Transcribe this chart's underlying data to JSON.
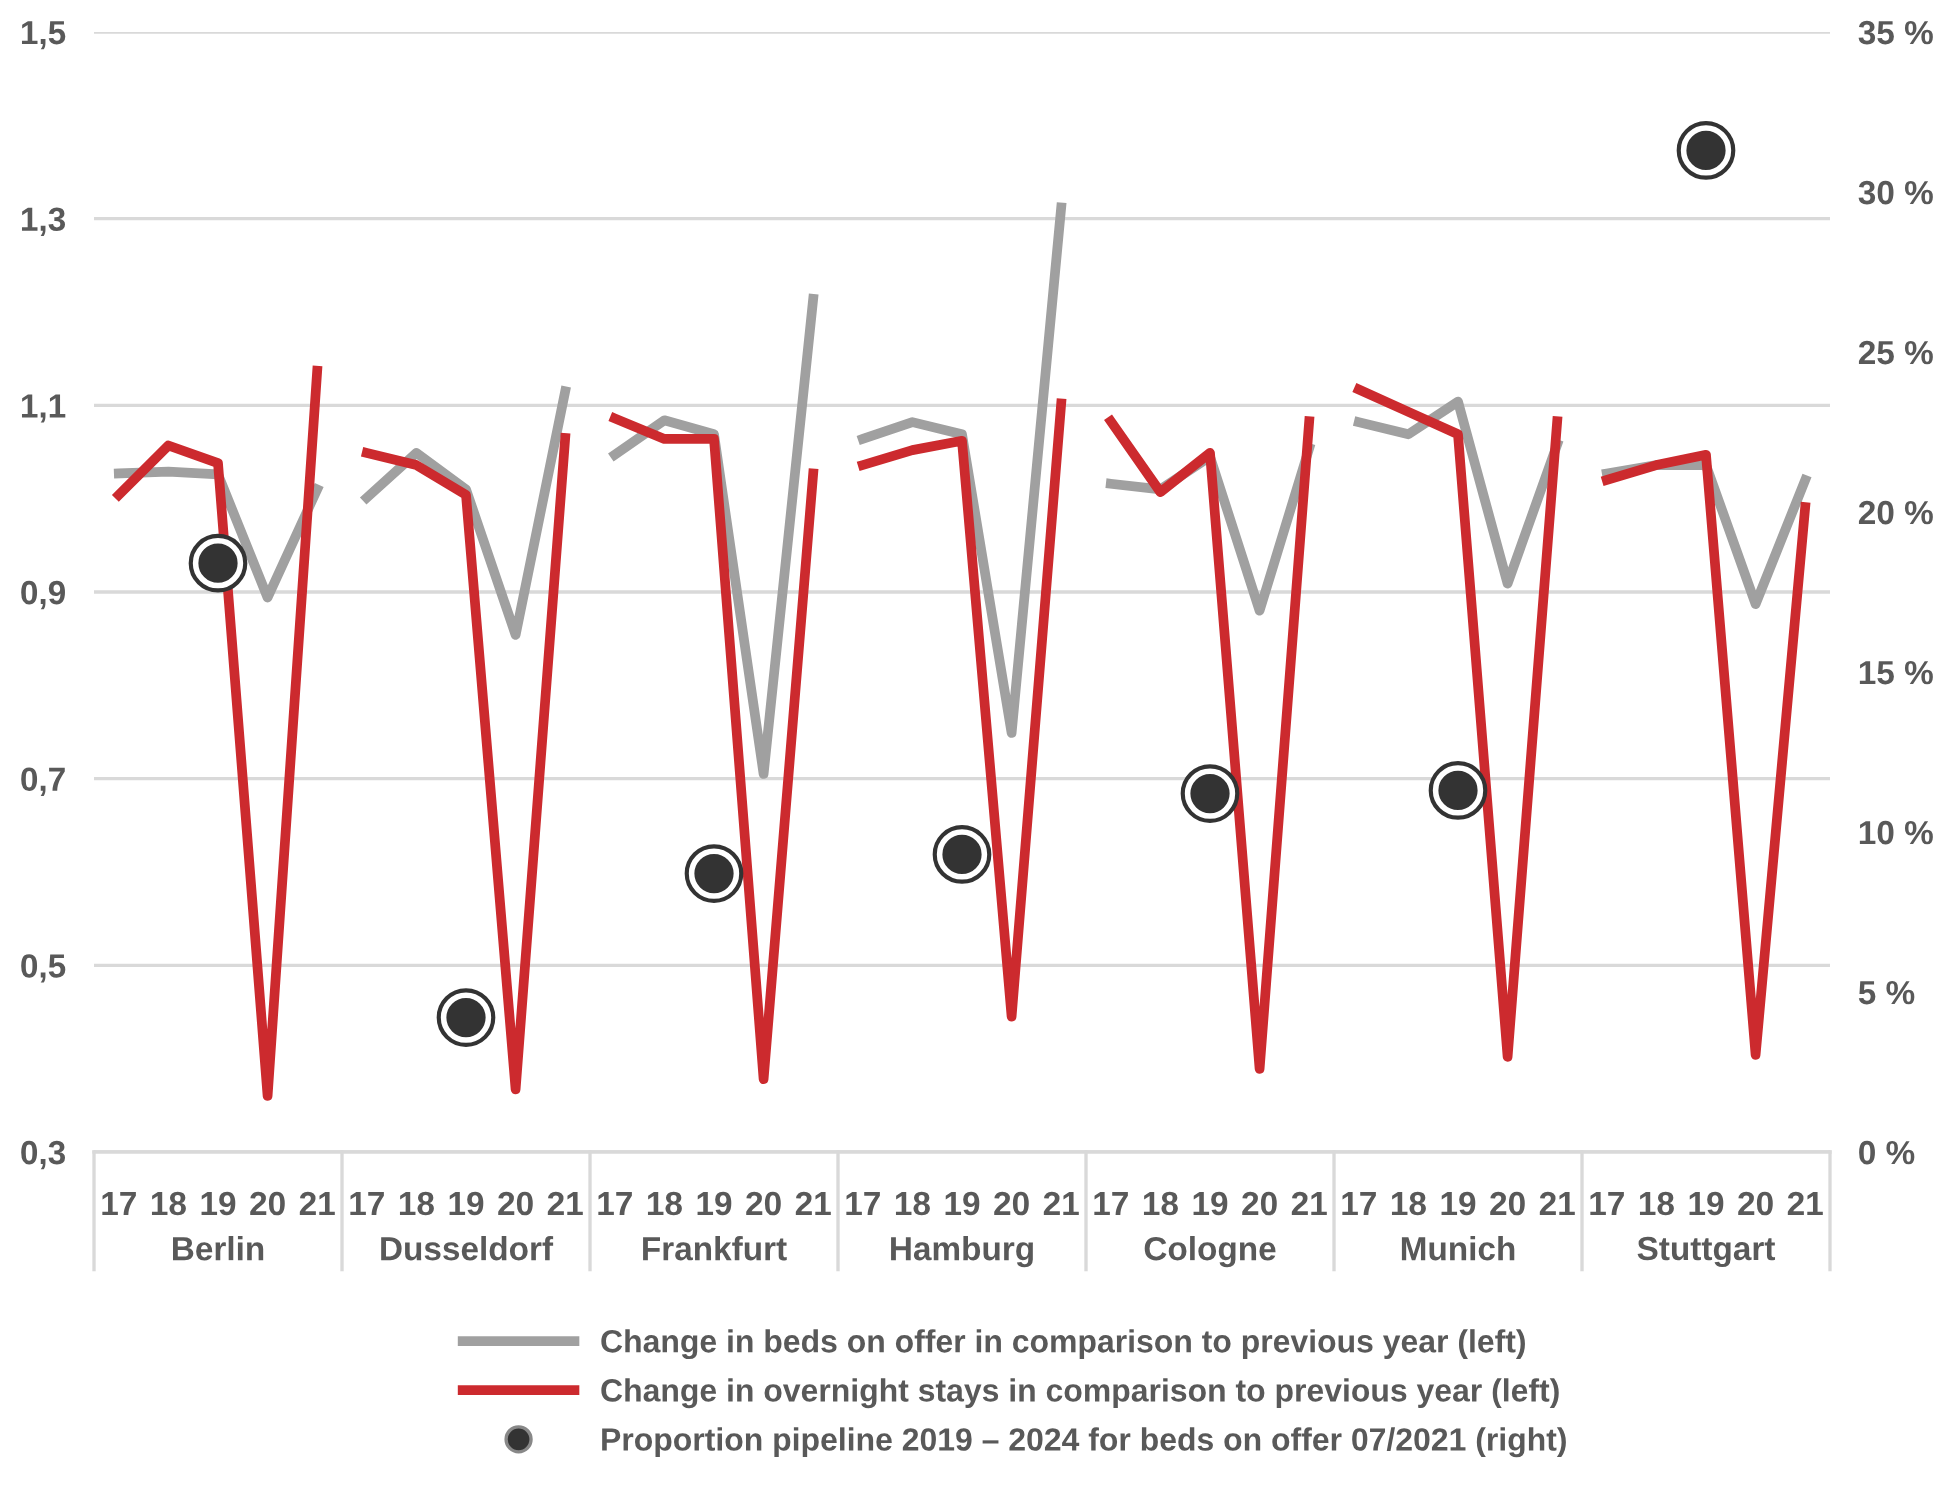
{
  "chart_data": {
    "type": "line",
    "grid": "y",
    "legend": "bottom",
    "categories": [
      "17",
      "18",
      "19",
      "20",
      "21",
      "17",
      "18",
      "19",
      "20",
      "21",
      "17",
      "18",
      "19",
      "20",
      "21",
      "17",
      "18",
      "19",
      "20",
      "21",
      "17",
      "18",
      "19",
      "20",
      "21",
      "17",
      "18",
      "19",
      "20",
      "21",
      "17",
      "18",
      "19",
      "20",
      "21"
    ],
    "annotations": [
      "Berlin",
      "Dusseldorf",
      "Frankfurt",
      "Hamburg",
      "Cologne",
      "Munich",
      "Stuttgart"
    ],
    "ylim": [
      0.3,
      1.5
    ],
    "yticks": [
      {
        "value": 0.3,
        "label": "0,3"
      },
      {
        "value": 0.5,
        "label": "0,5"
      },
      {
        "value": 0.7,
        "label": "0,7"
      },
      {
        "value": 0.9,
        "label": "0,9"
      },
      {
        "value": 1.1,
        "label": "1,1"
      },
      {
        "value": 1.3,
        "label": "1,3"
      },
      {
        "value": 1.5,
        "label": "1,5"
      }
    ],
    "y2lim": [
      0,
      35
    ],
    "y2ticks": [
      {
        "value": 0,
        "label": "0 %"
      },
      {
        "value": 5,
        "label": "5 %"
      },
      {
        "value": 10,
        "label": "10 %"
      },
      {
        "value": 15,
        "label": "15 %"
      },
      {
        "value": 20,
        "label": "20 %"
      },
      {
        "value": 25,
        "label": "25 %"
      },
      {
        "value": 30,
        "label": "30 %"
      },
      {
        "value": 35,
        "label": "35 %"
      }
    ],
    "series": [
      {
        "name": "Change in beds on offer in comparison to previous year (left)",
        "color": "#a0a0a0",
        "values": [
          1.027,
          1.029,
          1.026,
          0.894,
          1.01,
          null,
          null,
          null,
          null,
          null,
          null,
          null,
          null,
          null,
          null,
          null,
          null,
          null,
          null,
          null,
          null,
          null,
          null,
          null,
          null,
          null,
          null,
          null,
          null,
          null,
          null,
          null,
          null,
          null,
          null
        ]
      },
      {
        "name": "Change in overnight stays in comparison to previous year (left)",
        "color": "#cc2a2e",
        "values": [
          1.004,
          1.057,
          1.038,
          0.36,
          1.137,
          null,
          null,
          null,
          null,
          null,
          null,
          null,
          null,
          null,
          null,
          null,
          null,
          null,
          null,
          null,
          null,
          null,
          null,
          null,
          null,
          null,
          null,
          null,
          null,
          null,
          null,
          null,
          null,
          null,
          null
        ]
      },
      {
        "color": "#a0a0a0",
        "values": [
          null,
          null,
          null,
          null,
          null,
          1.001,
          1.049,
          1.01,
          0.854,
          1.115,
          null,
          null,
          null,
          null,
          null,
          null,
          null,
          null,
          null,
          null,
          null,
          null,
          null,
          null,
          null,
          null,
          null,
          null,
          null,
          null,
          null,
          null,
          null,
          null,
          null
        ]
      },
      {
        "color": "#cc2a2e",
        "values": [
          null,
          null,
          null,
          null,
          null,
          1.049,
          1.036,
          1.004,
          0.367,
          1.065,
          null,
          null,
          null,
          null,
          null,
          null,
          null,
          null,
          null,
          null,
          null,
          null,
          null,
          null,
          null,
          null,
          null,
          null,
          null,
          null,
          null,
          null,
          null,
          null,
          null
        ]
      },
      {
        "color": "#a0a0a0",
        "values": [
          null,
          null,
          null,
          null,
          null,
          null,
          null,
          null,
          null,
          null,
          1.047,
          1.084,
          1.069,
          0.705,
          1.214,
          null,
          null,
          null,
          null,
          null,
          null,
          null,
          null,
          null,
          null,
          null,
          null,
          null,
          null,
          null,
          null,
          null,
          null,
          null,
          null
        ]
      },
      {
        "color": "#cc2a2e",
        "values": [
          null,
          null,
          null,
          null,
          null,
          null,
          null,
          null,
          null,
          null,
          1.086,
          1.064,
          1.064,
          0.378,
          1.027,
          null,
          null,
          null,
          null,
          null,
          null,
          null,
          null,
          null,
          null,
          null,
          null,
          null,
          null,
          null,
          null,
          null,
          null,
          null,
          null
        ]
      },
      {
        "color": "#a0a0a0",
        "values": [
          null,
          null,
          null,
          null,
          null,
          null,
          null,
          null,
          null,
          null,
          null,
          null,
          null,
          null,
          null,
          1.064,
          1.082,
          1.069,
          0.749,
          1.312,
          null,
          null,
          null,
          null,
          null,
          null,
          null,
          null,
          null,
          null,
          null,
          null,
          null,
          null,
          null
        ]
      },
      {
        "color": "#cc2a2e",
        "values": [
          null,
          null,
          null,
          null,
          null,
          null,
          null,
          null,
          null,
          null,
          null,
          null,
          null,
          null,
          null,
          1.036,
          1.052,
          1.062,
          0.445,
          1.102,
          null,
          null,
          null,
          null,
          null,
          null,
          null,
          null,
          null,
          null,
          null,
          null,
          null,
          null,
          null
        ]
      },
      {
        "color": "#a0a0a0",
        "values": [
          null,
          null,
          null,
          null,
          null,
          null,
          null,
          null,
          null,
          null,
          null,
          null,
          null,
          null,
          null,
          null,
          null,
          null,
          null,
          null,
          1.016,
          1.01,
          1.045,
          0.88,
          1.054,
          null,
          null,
          null,
          null,
          null,
          null,
          null,
          null,
          null,
          null
        ]
      },
      {
        "color": "#cc2a2e",
        "values": [
          null,
          null,
          null,
          null,
          null,
          null,
          null,
          null,
          null,
          null,
          null,
          null,
          null,
          null,
          null,
          null,
          null,
          null,
          null,
          null,
          1.083,
          1.007,
          1.049,
          0.389,
          1.083,
          null,
          null,
          null,
          null,
          null,
          null,
          null,
          null,
          null,
          null
        ]
      },
      {
        "color": "#a0a0a0",
        "values": [
          null,
          null,
          null,
          null,
          null,
          null,
          null,
          null,
          null,
          null,
          null,
          null,
          null,
          null,
          null,
          null,
          null,
          null,
          null,
          null,
          null,
          null,
          null,
          null,
          null,
          1.082,
          1.069,
          1.104,
          0.909,
          1.058,
          null,
          null,
          null,
          null,
          null
        ]
      },
      {
        "color": "#cc2a2e",
        "values": [
          null,
          null,
          null,
          null,
          null,
          null,
          null,
          null,
          null,
          null,
          null,
          null,
          null,
          null,
          null,
          null,
          null,
          null,
          null,
          null,
          null,
          null,
          null,
          null,
          null,
          1.117,
          1.093,
          1.069,
          0.402,
          1.083,
          null,
          null,
          null,
          null,
          null
        ]
      },
      {
        "color": "#a0a0a0",
        "values": [
          null,
          null,
          null,
          null,
          null,
          null,
          null,
          null,
          null,
          null,
          null,
          null,
          null,
          null,
          null,
          null,
          null,
          null,
          null,
          null,
          null,
          null,
          null,
          null,
          null,
          null,
          null,
          null,
          null,
          null,
          1.027,
          1.036,
          1.036,
          0.887,
          1.02
        ]
      },
      {
        "color": "#cc2a2e",
        "values": [
          null,
          null,
          null,
          null,
          null,
          null,
          null,
          null,
          null,
          null,
          null,
          null,
          null,
          null,
          null,
          null,
          null,
          null,
          null,
          null,
          null,
          null,
          null,
          null,
          null,
          null,
          null,
          null,
          null,
          null,
          1.02,
          1.036,
          1.047,
          0.404,
          0.991
        ]
      },
      {
        "name": "Proportion pipeline 2019 – 2024 for beds on offer 07/2021 (right)",
        "type": "scatter",
        "axis": "y2",
        "marker": "circle",
        "color": "#333333",
        "values": [
          null,
          null,
          18.4,
          null,
          null,
          null,
          null,
          4.2,
          null,
          null,
          null,
          null,
          8.7,
          null,
          null,
          null,
          null,
          9.3,
          null,
          null,
          null,
          null,
          11.2,
          null,
          null,
          null,
          null,
          11.3,
          null,
          null,
          null,
          null,
          31.3,
          null,
          null
        ]
      }
    ]
  }
}
